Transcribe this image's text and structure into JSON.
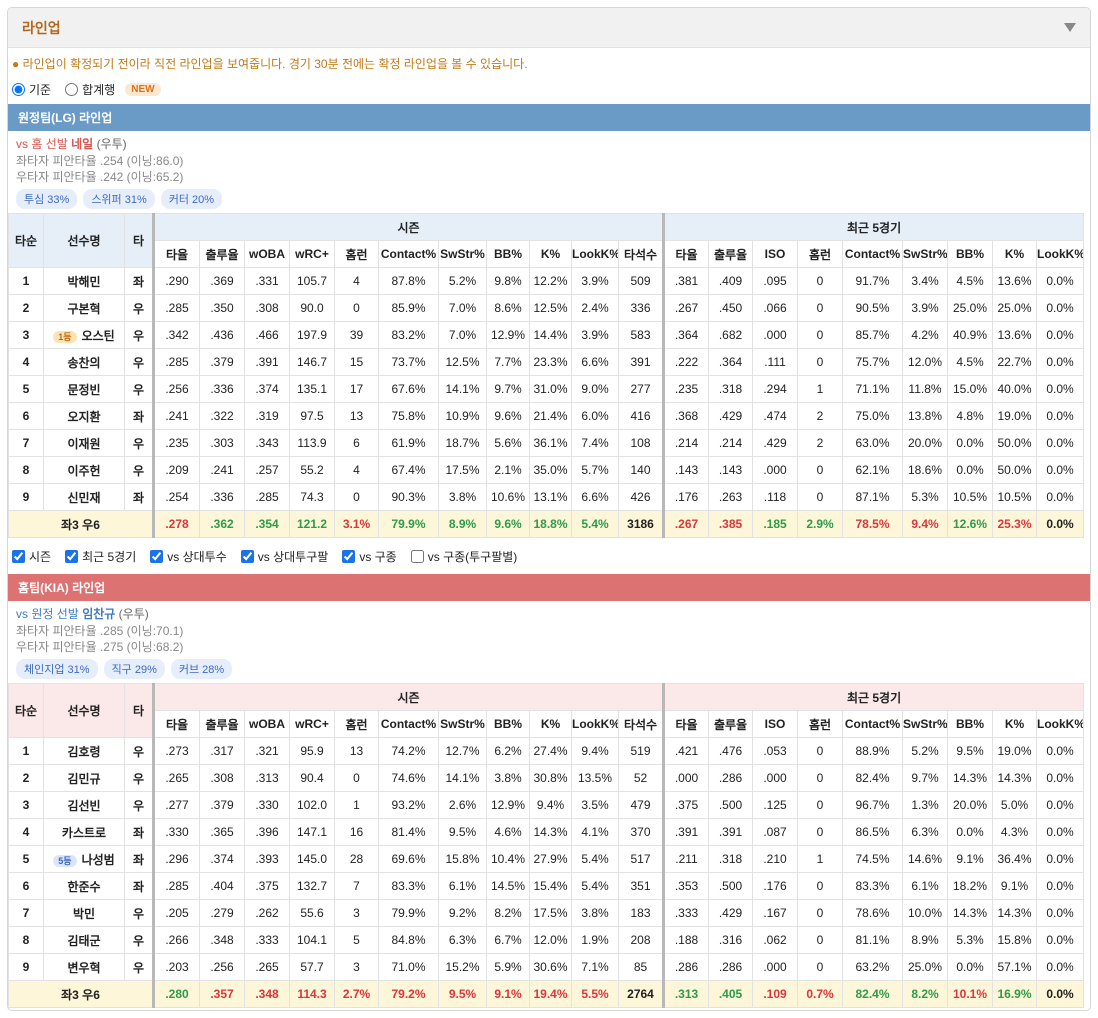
{
  "header": {
    "title": "라인업"
  },
  "notice": "라인업이 확정되기 전이라 직전 라인업을 보여줍니다. 경기 30분 전에는 확정 라인업을 볼 수 있습니다.",
  "view_options": [
    {
      "label": "기준",
      "checked": true
    },
    {
      "label": "합계행",
      "checked": false,
      "badge": "NEW"
    }
  ],
  "columns": {
    "fixed": [
      "타순",
      "선수명",
      "타"
    ],
    "groups": [
      {
        "label": "시즌",
        "columns": [
          "타율",
          "출루율",
          "wOBA",
          "wRC+",
          "홈런",
          "Contact%",
          "SwStr%",
          "BB%",
          "K%",
          "LookK%",
          "타석수"
        ]
      },
      {
        "label": "최근 5경기",
        "columns": [
          "타율",
          "출루율",
          "ISO",
          "홈런",
          "Contact%",
          "SwStr%",
          "BB%",
          "K%",
          "LookK%"
        ]
      }
    ]
  },
  "filters": [
    {
      "label": "시즌",
      "checked": true
    },
    {
      "label": "최근 5경기",
      "checked": true
    },
    {
      "label": "vs 상대투수",
      "checked": true
    },
    {
      "label": "vs 상대투구팔",
      "checked": true
    },
    {
      "label": "vs 구종",
      "checked": true
    },
    {
      "label": "vs 구종(투구팔별)",
      "checked": false
    }
  ],
  "teams": [
    {
      "title": "원정팀(LG) 라인업",
      "color": "#6a9bc6",
      "header_color": "#e6eff8",
      "pitcher": {
        "prefix": "vs 홈 선발",
        "name": "네일",
        "hand": "(우투)",
        "color": "#d9534f"
      },
      "splits": [
        "좌타자 피안타율 .254 (이닝:86.0)",
        "우타자 피안타율 .242 (이닝:65.2)"
      ],
      "pitches": [
        "투심 33%",
        "스위퍼 31%",
        "커터 20%"
      ],
      "rows": [
        {
          "order": "1",
          "name": "박해민",
          "hand": "좌",
          "season": [
            ".290",
            ".369",
            ".331",
            "105.7",
            "4",
            "87.8%",
            "5.2%",
            "9.8%",
            "12.2%",
            "3.9%",
            "509"
          ],
          "recent": [
            ".381",
            ".409",
            ".095",
            "0",
            "91.7%",
            "3.4%",
            "4.5%",
            "13.6%",
            "0.0%"
          ]
        },
        {
          "order": "2",
          "name": "구본혁",
          "hand": "우",
          "season": [
            ".285",
            ".350",
            ".308",
            "90.0",
            "0",
            "85.9%",
            "7.0%",
            "8.6%",
            "12.5%",
            "2.4%",
            "336"
          ],
          "recent": [
            ".267",
            ".450",
            ".066",
            "0",
            "90.5%",
            "3.9%",
            "25.0%",
            "25.0%",
            "0.0%"
          ]
        },
        {
          "order": "3",
          "name": "오스틴",
          "badge": "1등",
          "hand": "우",
          "season": [
            ".342",
            ".436",
            ".466",
            "197.9",
            "39",
            "83.2%",
            "7.0%",
            "12.9%",
            "14.4%",
            "3.9%",
            "583"
          ],
          "recent": [
            ".364",
            ".682",
            ".000",
            "0",
            "85.7%",
            "4.2%",
            "40.9%",
            "13.6%",
            "0.0%"
          ]
        },
        {
          "order": "4",
          "name": "송찬의",
          "hand": "우",
          "season": [
            ".285",
            ".379",
            ".391",
            "146.7",
            "15",
            "73.7%",
            "12.5%",
            "7.7%",
            "23.3%",
            "6.6%",
            "391"
          ],
          "recent": [
            ".222",
            ".364",
            ".111",
            "0",
            "75.7%",
            "12.0%",
            "4.5%",
            "22.7%",
            "0.0%"
          ]
        },
        {
          "order": "5",
          "name": "문정빈",
          "hand": "우",
          "season": [
            ".256",
            ".336",
            ".374",
            "135.1",
            "17",
            "67.6%",
            "14.1%",
            "9.7%",
            "31.0%",
            "9.0%",
            "277"
          ],
          "recent": [
            ".235",
            ".318",
            ".294",
            "1",
            "71.1%",
            "11.8%",
            "15.0%",
            "40.0%",
            "0.0%"
          ]
        },
        {
          "order": "6",
          "name": "오지환",
          "hand": "좌",
          "season": [
            ".241",
            ".322",
            ".319",
            "97.5",
            "13",
            "75.8%",
            "10.9%",
            "9.6%",
            "21.4%",
            "6.0%",
            "416"
          ],
          "recent": [
            ".368",
            ".429",
            ".474",
            "2",
            "75.0%",
            "13.8%",
            "4.8%",
            "19.0%",
            "0.0%"
          ]
        },
        {
          "order": "7",
          "name": "이재원",
          "hand": "우",
          "season": [
            ".235",
            ".303",
            ".343",
            "113.9",
            "6",
            "61.9%",
            "18.7%",
            "5.6%",
            "36.1%",
            "7.4%",
            "108"
          ],
          "recent": [
            ".214",
            ".214",
            ".429",
            "2",
            "63.0%",
            "20.0%",
            "0.0%",
            "50.0%",
            "0.0%"
          ]
        },
        {
          "order": "8",
          "name": "이주헌",
          "hand": "우",
          "season": [
            ".209",
            ".241",
            ".257",
            "55.2",
            "4",
            "67.4%",
            "17.5%",
            "2.1%",
            "35.0%",
            "5.7%",
            "140"
          ],
          "recent": [
            ".143",
            ".143",
            ".000",
            "0",
            "62.1%",
            "18.6%",
            "0.0%",
            "50.0%",
            "0.0%"
          ]
        },
        {
          "order": "9",
          "name": "신민재",
          "hand": "좌",
          "season": [
            ".254",
            ".336",
            ".285",
            "74.3",
            "0",
            "90.3%",
            "3.8%",
            "10.6%",
            "13.1%",
            "6.6%",
            "426"
          ],
          "recent": [
            ".176",
            ".263",
            ".118",
            "0",
            "87.1%",
            "5.3%",
            "10.5%",
            "10.5%",
            "0.0%"
          ]
        }
      ],
      "total": {
        "label": "좌3 우6",
        "season": [
          {
            "text": ".278",
            "color": "#d9363e"
          },
          {
            "text": ".362",
            "color": "#2e9b4a"
          },
          {
            "text": ".354",
            "color": "#2e9b4a"
          },
          {
            "text": "121.2",
            "color": "#2e9b4a"
          },
          {
            "text": "3.1%",
            "color": "#d9363e"
          },
          {
            "text": "79.9%",
            "color": "#2e9b4a"
          },
          {
            "text": "8.9%",
            "color": "#2e9b4a"
          },
          {
            "text": "9.6%",
            "color": "#2e9b4a"
          },
          {
            "text": "18.8%",
            "color": "#2e9b4a"
          },
          {
            "text": "5.4%",
            "color": "#2e9b4a"
          },
          {
            "text": "3186",
            "color": "#222222"
          }
        ],
        "recent": [
          {
            "text": ".267",
            "color": "#d9363e"
          },
          {
            "text": ".385",
            "color": "#d9363e"
          },
          {
            "text": ".185",
            "color": "#2e9b4a"
          },
          {
            "text": "2.9%",
            "color": "#2e9b4a"
          },
          {
            "text": "78.5%",
            "color": "#d9363e"
          },
          {
            "text": "9.4%",
            "color": "#d9363e"
          },
          {
            "text": "12.6%",
            "color": "#2e9b4a"
          },
          {
            "text": "25.3%",
            "color": "#d9363e"
          },
          {
            "text": "0.0%",
            "color": "#222222"
          }
        ]
      }
    },
    {
      "title": "홈팀(KIA) 라인업",
      "color": "#dd7272",
      "header_color": "#fbe8e8",
      "pitcher": {
        "prefix": "vs 원정 선발",
        "name": "임찬규",
        "hand": "(우투)",
        "color": "#3d7bc4"
      },
      "splits": [
        "좌타자 피안타율 .285 (이닝:70.1)",
        "우타자 피안타율 .275 (이닝:68.2)"
      ],
      "pitches": [
        "체인지업 31%",
        "직구 29%",
        "커브 28%"
      ],
      "rows": [
        {
          "order": "1",
          "name": "김호령",
          "hand": "우",
          "season": [
            ".273",
            ".317",
            ".321",
            "95.9",
            "13",
            "74.2%",
            "12.7%",
            "6.2%",
            "27.4%",
            "9.4%",
            "519"
          ],
          "recent": [
            ".421",
            ".476",
            ".053",
            "0",
            "88.9%",
            "5.2%",
            "9.5%",
            "19.0%",
            "0.0%"
          ]
        },
        {
          "order": "2",
          "name": "김민규",
          "hand": "우",
          "season": [
            ".265",
            ".308",
            ".313",
            "90.4",
            "0",
            "74.6%",
            "14.1%",
            "3.8%",
            "30.8%",
            "13.5%",
            "52"
          ],
          "recent": [
            ".000",
            ".286",
            ".000",
            "0",
            "82.4%",
            "9.7%",
            "14.3%",
            "14.3%",
            "0.0%"
          ]
        },
        {
          "order": "3",
          "name": "김선빈",
          "hand": "우",
          "season": [
            ".277",
            ".379",
            ".330",
            "102.0",
            "1",
            "93.2%",
            "2.6%",
            "12.9%",
            "9.4%",
            "3.5%",
            "479"
          ],
          "recent": [
            ".375",
            ".500",
            ".125",
            "0",
            "96.7%",
            "1.3%",
            "20.0%",
            "5.0%",
            "0.0%"
          ]
        },
        {
          "order": "4",
          "name": "카스트로",
          "hand": "좌",
          "season": [
            ".330",
            ".365",
            ".396",
            "147.1",
            "16",
            "81.4%",
            "9.5%",
            "4.6%",
            "14.3%",
            "4.1%",
            "370"
          ],
          "recent": [
            ".391",
            ".391",
            ".087",
            "0",
            "86.5%",
            "6.3%",
            "0.0%",
            "4.3%",
            "0.0%"
          ]
        },
        {
          "order": "5",
          "name": "나성범",
          "badge": "5등",
          "hand": "좌",
          "season": [
            ".296",
            ".374",
            ".393",
            "145.0",
            "28",
            "69.6%",
            "15.8%",
            "10.4%",
            "27.9%",
            "5.4%",
            "517"
          ],
          "recent": [
            ".211",
            ".318",
            ".210",
            "1",
            "74.5%",
            "14.6%",
            "9.1%",
            "36.4%",
            "0.0%"
          ]
        },
        {
          "order": "6",
          "name": "한준수",
          "hand": "좌",
          "season": [
            ".285",
            ".404",
            ".375",
            "132.7",
            "7",
            "83.3%",
            "6.1%",
            "14.5%",
            "15.4%",
            "5.4%",
            "351"
          ],
          "recent": [
            ".353",
            ".500",
            ".176",
            "0",
            "83.3%",
            "6.1%",
            "18.2%",
            "9.1%",
            "0.0%"
          ]
        },
        {
          "order": "7",
          "name": "박민",
          "hand": "우",
          "season": [
            ".205",
            ".279",
            ".262",
            "55.6",
            "3",
            "79.9%",
            "9.2%",
            "8.2%",
            "17.5%",
            "3.8%",
            "183"
          ],
          "recent": [
            ".333",
            ".429",
            ".167",
            "0",
            "78.6%",
            "10.0%",
            "14.3%",
            "14.3%",
            "0.0%"
          ]
        },
        {
          "order": "8",
          "name": "김태군",
          "hand": "우",
          "season": [
            ".266",
            ".348",
            ".333",
            "104.1",
            "5",
            "84.8%",
            "6.3%",
            "6.7%",
            "12.0%",
            "1.9%",
            "208"
          ],
          "recent": [
            ".188",
            ".316",
            ".062",
            "0",
            "81.1%",
            "8.9%",
            "5.3%",
            "15.8%",
            "0.0%"
          ]
        },
        {
          "order": "9",
          "name": "변우혁",
          "hand": "우",
          "season": [
            ".203",
            ".256",
            ".265",
            "57.7",
            "3",
            "71.0%",
            "15.2%",
            "5.9%",
            "30.6%",
            "7.1%",
            "85"
          ],
          "recent": [
            ".286",
            ".286",
            ".000",
            "0",
            "63.2%",
            "25.0%",
            "0.0%",
            "57.1%",
            "0.0%"
          ]
        }
      ],
      "total": {
        "label": "좌3 우6",
        "season": [
          {
            "text": ".280",
            "color": "#2e9b4a"
          },
          {
            "text": ".357",
            "color": "#d9363e"
          },
          {
            "text": ".348",
            "color": "#d9363e"
          },
          {
            "text": "114.3",
            "color": "#d9363e"
          },
          {
            "text": "2.7%",
            "color": "#d9363e"
          },
          {
            "text": "79.2%",
            "color": "#d9363e"
          },
          {
            "text": "9.5%",
            "color": "#d9363e"
          },
          {
            "text": "9.1%",
            "color": "#d9363e"
          },
          {
            "text": "19.4%",
            "color": "#d9363e"
          },
          {
            "text": "5.5%",
            "color": "#d9363e"
          },
          {
            "text": "2764",
            "color": "#222222"
          }
        ],
        "recent": [
          {
            "text": ".313",
            "color": "#2e9b4a"
          },
          {
            "text": ".405",
            "color": "#2e9b4a"
          },
          {
            "text": ".109",
            "color": "#d9363e"
          },
          {
            "text": "0.7%",
            "color": "#d9363e"
          },
          {
            "text": "82.4%",
            "color": "#2e9b4a"
          },
          {
            "text": "8.2%",
            "color": "#2e9b4a"
          },
          {
            "text": "10.1%",
            "color": "#d9363e"
          },
          {
            "text": "16.9%",
            "color": "#2e9b4a"
          },
          {
            "text": "0.0%",
            "color": "#222222"
          }
        ]
      }
    }
  ]
}
